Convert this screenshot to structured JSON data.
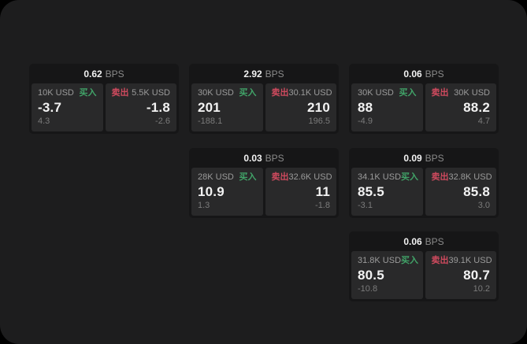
{
  "theme": {
    "window_bg": "#1d1d1e",
    "card_bg": "#161617",
    "panel_bg": "#29292a",
    "text_primary": "#f2f2f2",
    "text_secondary": "#8a8a8a",
    "text_label": "#9b9b9b",
    "text_dim": "#7b7b7b",
    "buy_color": "#41a368",
    "sell_color": "#cf4a5e"
  },
  "labels": {
    "bps_unit": "BPS",
    "buy": "买入",
    "sell": "卖出"
  },
  "cards": [
    {
      "row": 1,
      "col": 1,
      "bps": "0.62",
      "buy": {
        "amount": "10K USD",
        "price": "-3.7",
        "delta": "4.3"
      },
      "sell": {
        "amount": "5.5K USD",
        "price": "-1.8",
        "delta": "-2.6"
      }
    },
    {
      "row": 1,
      "col": 2,
      "bps": "2.92",
      "buy": {
        "amount": "30K USD",
        "price": "201",
        "delta": "-188.1"
      },
      "sell": {
        "amount": "30.1K USD",
        "price": "210",
        "delta": "196.5"
      }
    },
    {
      "row": 1,
      "col": 3,
      "bps": "0.06",
      "buy": {
        "amount": "30K USD",
        "price": "88",
        "delta": "-4.9"
      },
      "sell": {
        "amount": "30K USD",
        "price": "88.2",
        "delta": "4.7"
      }
    },
    {
      "row": 2,
      "col": 2,
      "bps": "0.03",
      "buy": {
        "amount": "28K USD",
        "price": "10.9",
        "delta": "1.3"
      },
      "sell": {
        "amount": "32.6K USD",
        "price": "11",
        "delta": "-1.8"
      }
    },
    {
      "row": 2,
      "col": 3,
      "bps": "0.09",
      "buy": {
        "amount": "34.1K USD",
        "price": "85.5",
        "delta": "-3.1"
      },
      "sell": {
        "amount": "32.8K USD",
        "price": "85.8",
        "delta": "3.0"
      }
    },
    {
      "row": 3,
      "col": 3,
      "bps": "0.06",
      "buy": {
        "amount": "31.8K USD",
        "price": "80.5",
        "delta": "-10.8"
      },
      "sell": {
        "amount": "39.1K USD",
        "price": "80.7",
        "delta": "10.2"
      }
    }
  ]
}
